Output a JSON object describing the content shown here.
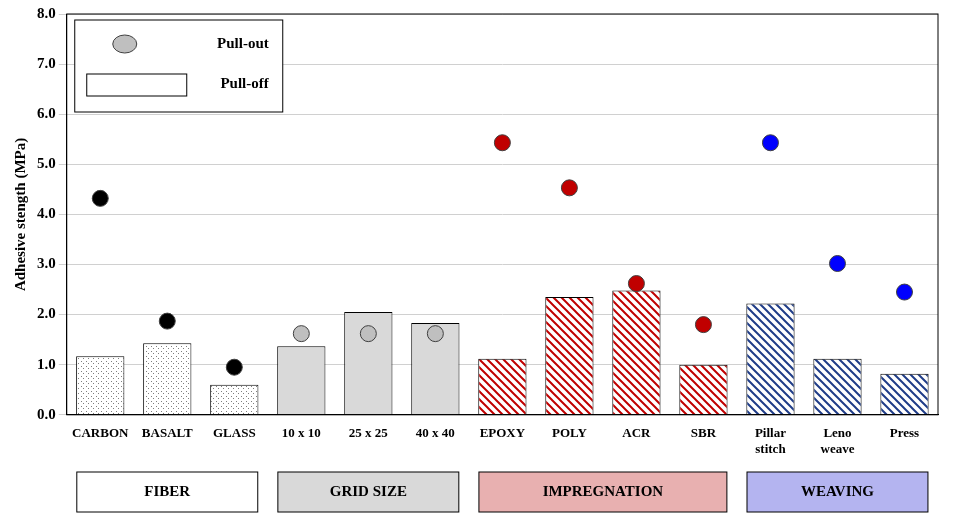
{
  "chart_data": {
    "type": "bar",
    "y_label": "Adhesive stength (MPa)",
    "categories": [
      "CARBON",
      "BASALT",
      "GLASS",
      "10 x 10",
      "25 x 25",
      "40 x 40",
      "EPOXY",
      "POLY",
      "ACR",
      "SBR",
      [
        "Pillar",
        "stitch"
      ],
      [
        "Leno",
        "weave"
      ],
      "Press"
    ],
    "series": [
      {
        "name": "Pull-out",
        "type": "scatter",
        "marker": "circle",
        "colors": [
          "#000000",
          "#000000",
          "#000000",
          "#bfbfbf",
          "#bfbfbf",
          "#bfbfbf",
          "#c00000",
          "#c00000",
          "#c00000",
          "#c00000",
          "#0000ff",
          "#0000ff",
          "#0000ff"
        ],
        "values": [
          4.32,
          1.87,
          0.95,
          1.62,
          1.62,
          1.62,
          5.43,
          4.53,
          2.62,
          1.8,
          5.43,
          3.02,
          2.45
        ]
      },
      {
        "name": "Pull-off",
        "type": "bar",
        "colors": [
          "#7f7f7f",
          "#7f7f7f",
          "#7f7f7f",
          "#d9d9d9",
          "#d9d9d9",
          "#d9d9d9",
          "#c00000",
          "#c00000",
          "#c00000",
          "#c00000",
          "#1f3c88",
          "#1f3c88",
          "#1f3c88"
        ],
        "values": [
          1.17,
          1.43,
          0.6,
          1.37,
          2.05,
          1.83,
          1.12,
          2.35,
          2.48,
          1.0,
          2.22,
          1.12,
          0.82
        ]
      }
    ],
    "groups": [
      {
        "label": "FIBER",
        "color": "#ffffff",
        "categories": [
          "CARBON",
          "BASALT",
          "GLASS"
        ]
      },
      {
        "label": "GRID SIZE",
        "color": "#d9d9d9",
        "categories": [
          "10 x 10",
          "25 x 25",
          "40 x 40"
        ]
      },
      {
        "label": "IMPREGNATION",
        "color": "#e8b0b0",
        "categories": [
          "EPOXY",
          "POLY",
          "ACR",
          "SBR"
        ]
      },
      {
        "label": "WEAVING",
        "color": "#b4b4f0",
        "categories": [
          [
            "Pillar",
            "stitch"
          ],
          [
            "Leno",
            "weave"
          ],
          "Press"
        ]
      }
    ],
    "ylim": [
      0,
      8
    ],
    "yticks": [
      {
        "value": 0,
        "label": "0.0"
      },
      {
        "value": 1,
        "label": "1.0"
      },
      {
        "value": 2,
        "label": "2.0"
      },
      {
        "value": 3,
        "label": "3.0"
      },
      {
        "value": 4,
        "label": "4.0"
      },
      {
        "value": 5,
        "label": "5.0"
      },
      {
        "value": 6,
        "label": "6.0"
      },
      {
        "value": 7,
        "label": "7.0"
      },
      {
        "value": 8,
        "label": "8.0"
      }
    ],
    "grid": true,
    "legend": "upper left"
  }
}
